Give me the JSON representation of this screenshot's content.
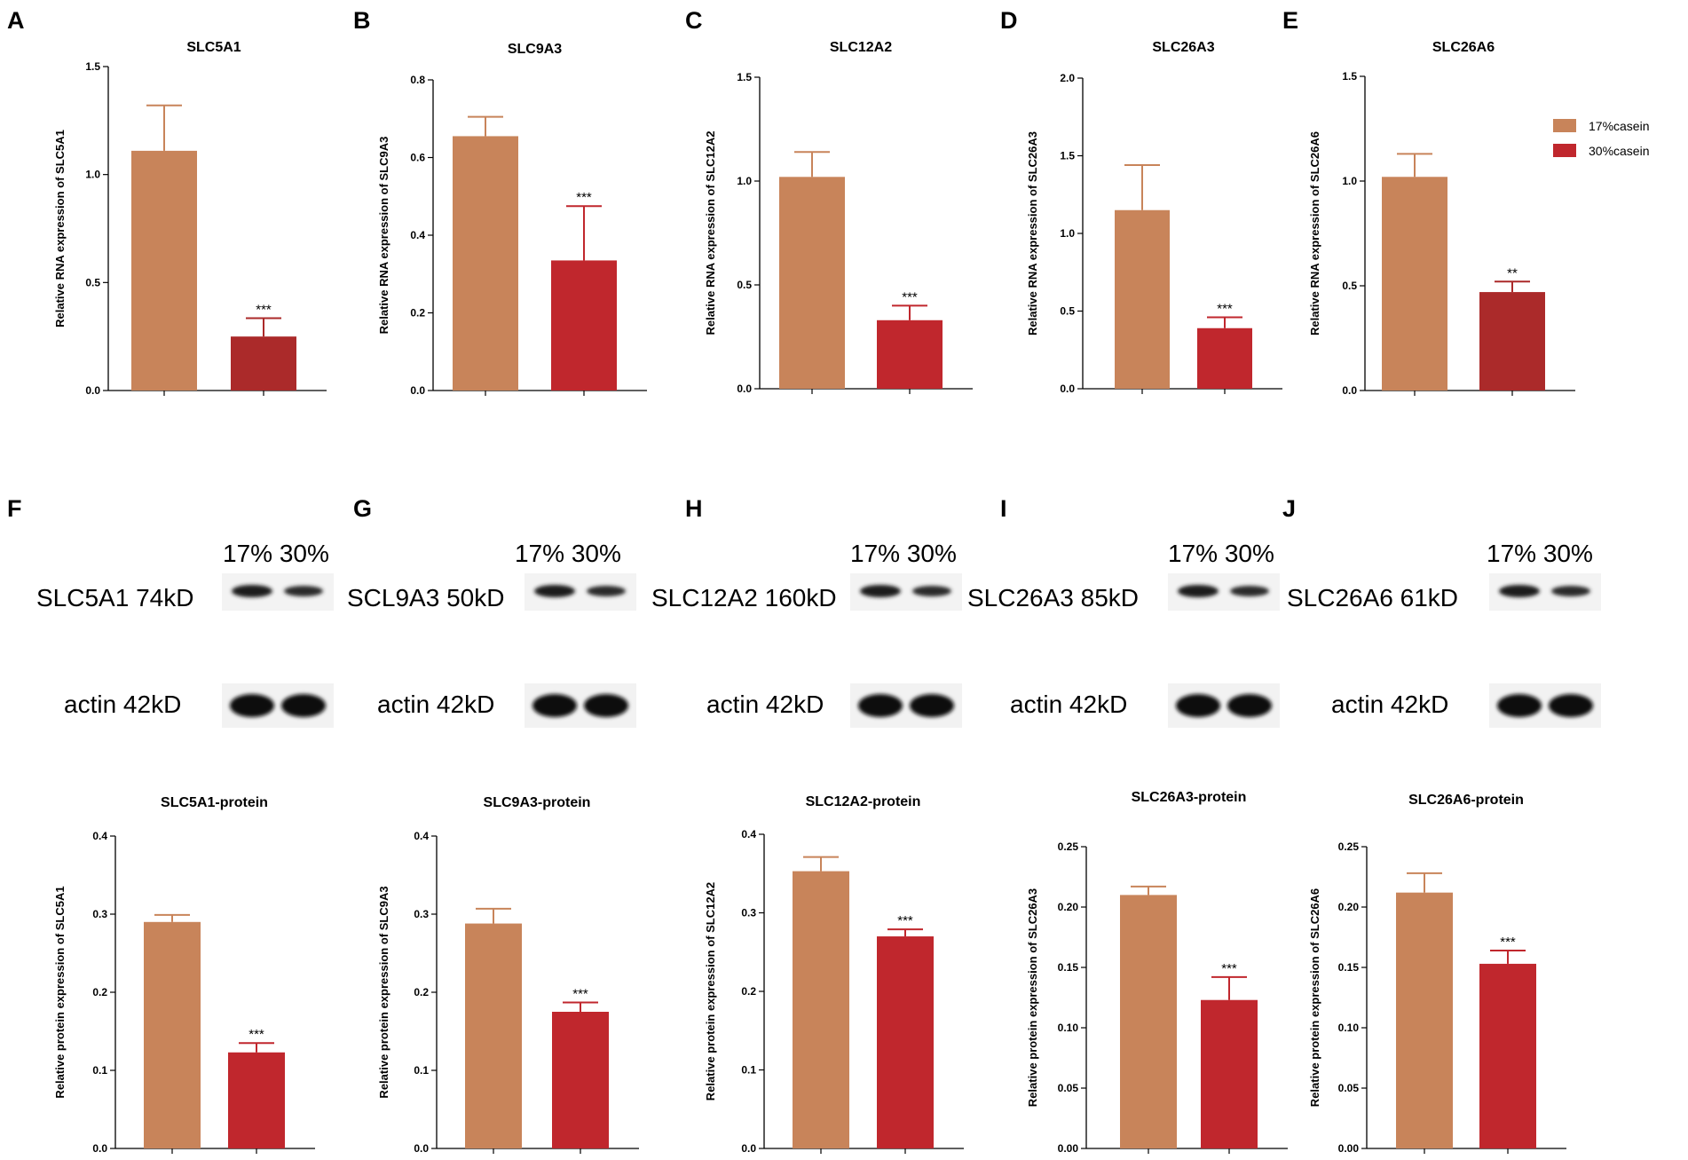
{
  "colors": {
    "c17": "#c8845a",
    "c30": "#c0272d",
    "c30_dark": "#ab2a2a",
    "axis": "#000000"
  },
  "legend": {
    "items": [
      {
        "label": "17%casein",
        "color": "#c8845a"
      },
      {
        "label": "30%casein",
        "color": "#c0272d"
      }
    ]
  },
  "chart_data": [
    {
      "panel": "A",
      "type": "bar",
      "title": "SLC5A1",
      "ylabel": "Relative RNA expression of SLC5A1",
      "ylim": [
        0,
        1.5
      ],
      "yticks": [
        "0.0",
        "0.5",
        "1.0",
        "1.5"
      ],
      "categories": [
        "17%casein",
        "30%casein"
      ],
      "values": [
        1.11,
        0.25
      ],
      "errors": [
        0.21,
        0.085
      ],
      "sig": [
        "",
        "***"
      ],
      "bar_colors": [
        "#c8845a",
        "#ab2a2a"
      ]
    },
    {
      "panel": "B",
      "type": "bar",
      "title": "SLC9A3",
      "ylabel": "Relative RNA expression of SLC9A3",
      "ylim": [
        0,
        0.8
      ],
      "yticks": [
        "0.0",
        "0.2",
        "0.4",
        "0.6",
        "0.8"
      ],
      "categories": [
        "17%casein",
        "30%casein"
      ],
      "values": [
        0.655,
        0.335
      ],
      "errors": [
        0.05,
        0.14
      ],
      "sig": [
        "",
        "***"
      ],
      "bar_colors": [
        "#c8845a",
        "#c0272d"
      ]
    },
    {
      "panel": "C",
      "type": "bar",
      "title": "SLC12A2",
      "ylabel": "Relative RNA expression of SLC12A2",
      "ylim": [
        0,
        1.5
      ],
      "yticks": [
        "0.0",
        "0.5",
        "1.0",
        "1.5"
      ],
      "categories": [
        "17%casein",
        "30%casein"
      ],
      "values": [
        1.02,
        0.33
      ],
      "errors": [
        0.12,
        0.07
      ],
      "sig": [
        "",
        "***"
      ],
      "bar_colors": [
        "#c8845a",
        "#c0272d"
      ]
    },
    {
      "panel": "D",
      "type": "bar",
      "title": "SLC26A3",
      "ylabel": "Relative RNA expression of SLC26A3",
      "ylim": [
        0,
        2.0
      ],
      "yticks": [
        "0.0",
        "0.5",
        "1.0",
        "1.5",
        "2.0"
      ],
      "categories": [
        "17%casein",
        "30%casein"
      ],
      "values": [
        1.15,
        0.39
      ],
      "errors": [
        0.29,
        0.07
      ],
      "sig": [
        "",
        "***"
      ],
      "bar_colors": [
        "#c8845a",
        "#c0272d"
      ]
    },
    {
      "panel": "E",
      "type": "bar",
      "title": "SLC26A6",
      "ylabel": "Relative RNA expression of SLC26A6",
      "ylim": [
        0,
        1.5
      ],
      "yticks": [
        "0.0",
        "0.5",
        "1.0",
        "1.5"
      ],
      "categories": [
        "17%casein",
        "30%casein"
      ],
      "values": [
        1.02,
        0.47
      ],
      "errors": [
        0.11,
        0.05
      ],
      "sig": [
        "",
        "**"
      ],
      "bar_colors": [
        "#c8845a",
        "#ab2a2a"
      ]
    },
    {
      "panel": "F",
      "type": "bar",
      "title": "SLC5A1-protein",
      "ylabel": "Relative protein expression of SLC5A1",
      "ylim": [
        0,
        0.4
      ],
      "yticks": [
        "0.0",
        "0.1",
        "0.2",
        "0.3",
        "0.4"
      ],
      "categories": [
        "17%casein",
        "30%casein"
      ],
      "values": [
        0.29,
        0.123
      ],
      "errors": [
        0.009,
        0.012
      ],
      "sig": [
        "",
        "***"
      ],
      "bar_colors": [
        "#c8845a",
        "#c0272d"
      ]
    },
    {
      "panel": "G",
      "type": "bar",
      "title": "SLC9A3-protein",
      "ylabel": "Relative protein expression of SLC9A3",
      "ylim": [
        0,
        0.4
      ],
      "yticks": [
        "0.0",
        "0.1",
        "0.2",
        "0.3",
        "0.4"
      ],
      "categories": [
        "17%casein",
        "30%casein"
      ],
      "values": [
        0.288,
        0.175
      ],
      "errors": [
        0.019,
        0.012
      ],
      "sig": [
        "",
        "***"
      ],
      "bar_colors": [
        "#c8845a",
        "#c0272d"
      ]
    },
    {
      "panel": "H",
      "type": "bar",
      "title": "SLC12A2-protein",
      "ylabel": "Relative protein expression of SLC12A2",
      "ylim": [
        0,
        0.4
      ],
      "yticks": [
        "0.0",
        "0.1",
        "0.2",
        "0.3",
        "0.4"
      ],
      "categories": [
        "17%casein",
        "30%casein"
      ],
      "values": [
        0.353,
        0.27
      ],
      "errors": [
        0.018,
        0.009
      ],
      "sig": [
        "",
        "***"
      ],
      "bar_colors": [
        "#c8845a",
        "#c0272d"
      ]
    },
    {
      "panel": "I",
      "type": "bar",
      "title": "SLC26A3-protein",
      "ylabel": "Relative protein expression of SLC26A3",
      "ylim": [
        0,
        0.25
      ],
      "yticks": [
        "0.00",
        "0.05",
        "0.10",
        "0.15",
        "0.20",
        "0.25"
      ],
      "categories": [
        "17%casein",
        "30%casein"
      ],
      "values": [
        0.21,
        0.123
      ],
      "errors": [
        0.007,
        0.019
      ],
      "sig": [
        "",
        "***"
      ],
      "bar_colors": [
        "#c8845a",
        "#c0272d"
      ]
    },
    {
      "panel": "J",
      "type": "bar",
      "title": "SLC26A6-protein",
      "ylabel": "Relative protein expression of SLC26A6",
      "ylim": [
        0,
        0.25
      ],
      "yticks": [
        "0.00",
        "0.05",
        "0.10",
        "0.15",
        "0.20",
        "0.25"
      ],
      "categories": [
        "17%casein",
        "30%casein"
      ],
      "values": [
        0.212,
        0.153
      ],
      "errors": [
        0.016,
        0.011
      ],
      "sig": [
        "",
        "***"
      ],
      "bar_colors": [
        "#c8845a",
        "#c0272d"
      ]
    }
  ],
  "blots": [
    {
      "header": "17% 30%",
      "protein": "SLC5A1 74kD",
      "actin": "actin 42kD"
    },
    {
      "header": "17% 30%",
      "protein": "SCL9A3 50kD",
      "actin": "actin 42kD"
    },
    {
      "header": "17% 30%",
      "protein": "SLC12A2 160kD",
      "actin": "actin 42kD"
    },
    {
      "header": "17% 30%",
      "protein": "SLC26A3 85kD",
      "actin": "actin 42kD"
    },
    {
      "header": "17% 30%",
      "protein": "SLC26A6 61kD",
      "actin": "actin 42kD"
    }
  ]
}
